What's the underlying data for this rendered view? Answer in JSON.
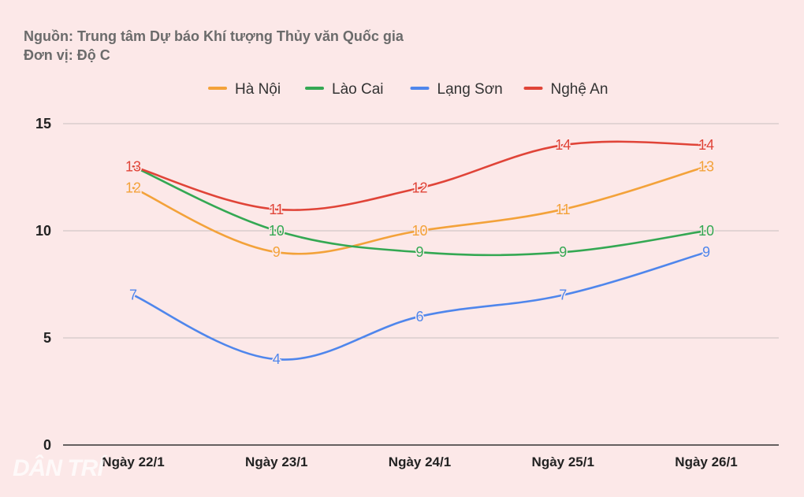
{
  "header": {
    "source": "Nguồn: Trung tâm Dự báo Khí tượng Thủy văn Quốc gia",
    "unit": "Đơn vị: Độ C"
  },
  "watermark": "DÂN TRÍ",
  "chart_data": {
    "type": "line",
    "title": "",
    "xlabel": "",
    "ylabel": "",
    "categories": [
      "Ngày 22/1",
      "Ngày 23/1",
      "Ngày 24/1",
      "Ngày 25/1",
      "Ngày 26/1"
    ],
    "ylim": [
      0,
      15
    ],
    "yticks": [
      0,
      5,
      10,
      15
    ],
    "grid": true,
    "legend_position": "top",
    "series": [
      {
        "name": "Hà Nội",
        "color": "#f3a23a",
        "values": [
          12,
          9,
          10,
          11,
          13
        ]
      },
      {
        "name": "Lào Cai",
        "color": "#34a853",
        "values": [
          13,
          10,
          9,
          9,
          10
        ]
      },
      {
        "name": "Lạng Sơn",
        "color": "#4f86ec",
        "values": [
          7,
          4,
          6,
          7,
          9
        ]
      },
      {
        "name": "Nghệ An",
        "color": "#e04438",
        "values": [
          13,
          11,
          12,
          14,
          14
        ]
      }
    ]
  }
}
